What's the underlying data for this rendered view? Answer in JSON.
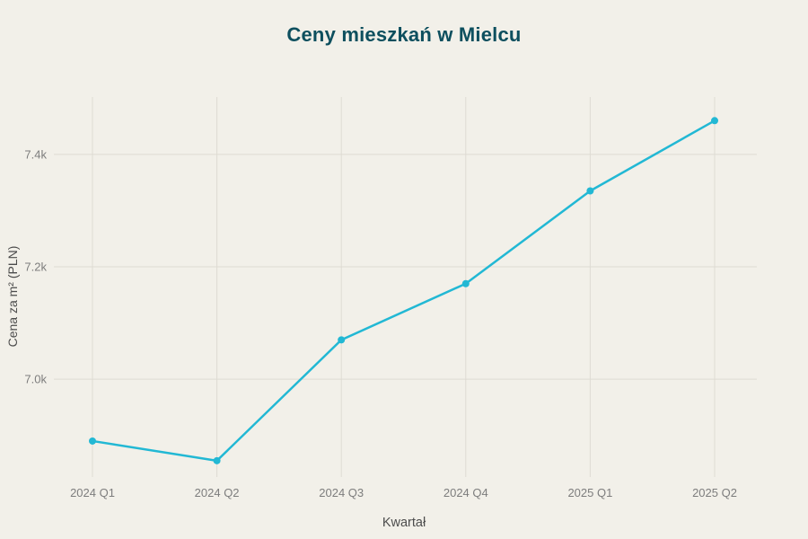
{
  "chart_data": {
    "type": "line",
    "title": "Ceny mieszkań w Mielcu",
    "xlabel": "Kwartał",
    "ylabel": "Cena za m² (PLN)",
    "categories": [
      "2024 Q1",
      "2024 Q2",
      "2024 Q3",
      "2024 Q4",
      "2025 Q1",
      "2025 Q2"
    ],
    "values": [
      6890,
      6855,
      7070,
      7170,
      7335,
      7460
    ],
    "ylim": [
      6826,
      7502
    ],
    "yticks": [
      7000,
      7200,
      7400
    ],
    "ytick_labels": [
      "7.0k",
      "7.2k",
      "7.4k"
    ],
    "grid": true,
    "legend": "none",
    "colors": {
      "line": "#22b8d4",
      "marker": "#22b8d4",
      "background": "#f2f0e9",
      "title": "#0d4f5e",
      "grid": "#dedbd3",
      "tick_text": "#7d7d7d",
      "axis_title_text": "#4c4c4c"
    }
  }
}
